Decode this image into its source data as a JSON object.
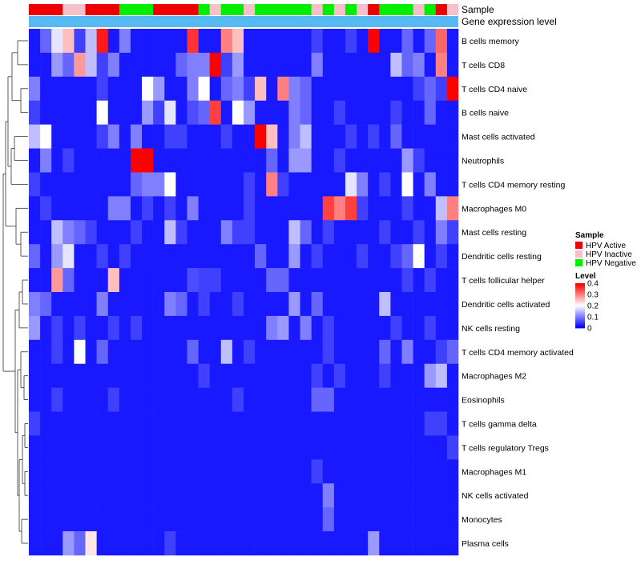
{
  "chart_data": {
    "type": "heatmap",
    "title": "",
    "annotation_tracks": [
      {
        "label": "Sample"
      },
      {
        "label": "Gene expression level"
      }
    ],
    "rows": [
      "B cells memory",
      "T cells CD8",
      "T cells CD4 naive",
      "B cells naive",
      "Mast cells activated",
      "Neutrophils",
      "T cells CD4 memory resting",
      "Macrophages M0",
      "Mast cells resting",
      "Dendritic cells resting",
      "T cells follicular helper",
      "Dendritic cells activated",
      "NK cells resting",
      "T cells CD4 memory activated",
      "Macrophages M2",
      "Eosinophils",
      "T cells gamma delta",
      "T cells regulatory  Tregs",
      "Macrophages M1",
      "NK cells activated",
      "Monocytes",
      "Plasma cells"
    ],
    "sample_groups": [
      "A",
      "A",
      "A",
      "I",
      "I",
      "A",
      "A",
      "A",
      "N",
      "N",
      "N",
      "A",
      "A",
      "A",
      "A",
      "N",
      "I",
      "N",
      "N",
      "I",
      "N",
      "N",
      "N",
      "N",
      "N",
      "I",
      "N",
      "I",
      "N",
      "I",
      "A",
      "N",
      "N",
      "N",
      "I",
      "N",
      "A",
      "I"
    ],
    "values": [
      [
        0.02,
        0.08,
        0.18,
        0.25,
        0.05,
        0.15,
        0.38,
        0.02,
        0.1,
        0.02,
        0.02,
        0.02,
        0.02,
        0.02,
        0.36,
        0.02,
        0.02,
        0.3,
        0.25,
        0.02,
        0.02,
        0.02,
        0.02,
        0.02,
        0.02,
        0.05,
        0.02,
        0.02,
        0.05,
        0.02,
        0.4,
        0.02,
        0.02,
        0.08,
        0.02,
        0.08,
        0.32,
        0.02
      ],
      [
        0.02,
        0.02,
        0.12,
        0.08,
        0.28,
        0.15,
        0.05,
        0.1,
        0.02,
        0.02,
        0.02,
        0.02,
        0.02,
        0.08,
        0.1,
        0.1,
        0.4,
        0.05,
        0.12,
        0.02,
        0.02,
        0.02,
        0.02,
        0.02,
        0.02,
        0.1,
        0.02,
        0.02,
        0.02,
        0.02,
        0.02,
        0.02,
        0.15,
        0.08,
        0.1,
        0.02,
        0.3,
        0.02
      ],
      [
        0.1,
        0.02,
        0.02,
        0.02,
        0.02,
        0.02,
        0.05,
        0.02,
        0.02,
        0.02,
        0.2,
        0.12,
        0.02,
        0.02,
        0.1,
        0.2,
        0.02,
        0.08,
        0.1,
        0.05,
        0.25,
        0.02,
        0.3,
        0.1,
        0.08,
        0.02,
        0.02,
        0.02,
        0.02,
        0.02,
        0.02,
        0.02,
        0.02,
        0.02,
        0.05,
        0.08,
        0.05,
        0.4
      ],
      [
        0.05,
        0.02,
        0.02,
        0.02,
        0.02,
        0.02,
        0.2,
        0.02,
        0.02,
        0.02,
        0.12,
        0.05,
        0.18,
        0.02,
        0.06,
        0.08,
        0.35,
        0.02,
        0.2,
        0.12,
        0.02,
        0.02,
        0.02,
        0.1,
        0.08,
        0.02,
        0.02,
        0.05,
        0.02,
        0.02,
        0.02,
        0.02,
        0.05,
        0.02,
        0.02,
        0.08,
        0.02,
        0.02
      ],
      [
        0.15,
        0.2,
        0.02,
        0.02,
        0.02,
        0.02,
        0.05,
        0.1,
        0.02,
        0.1,
        0.02,
        0.02,
        0.05,
        0.05,
        0.02,
        0.02,
        0.02,
        0.05,
        0.02,
        0.02,
        0.4,
        0.25,
        0.02,
        0.1,
        0.15,
        0.02,
        0.02,
        0.02,
        0.05,
        0.02,
        0.05,
        0.02,
        0.08,
        0.02,
        0.02,
        0.02,
        0.02,
        0.02
      ],
      [
        0.02,
        0.1,
        0.02,
        0.05,
        0.02,
        0.02,
        0.02,
        0.02,
        0.02,
        0.4,
        0.4,
        0.02,
        0.02,
        0.02,
        0.02,
        0.02,
        0.02,
        0.02,
        0.02,
        0.02,
        0.02,
        0.08,
        0.02,
        0.12,
        0.12,
        0.02,
        0.02,
        0.05,
        0.02,
        0.02,
        0.02,
        0.02,
        0.02,
        0.12,
        0.05,
        0.02,
        0.02,
        0.02
      ],
      [
        0.05,
        0.02,
        0.02,
        0.02,
        0.02,
        0.02,
        0.02,
        0.02,
        0.02,
        0.08,
        0.1,
        0.1,
        0.2,
        0.02,
        0.02,
        0.02,
        0.02,
        0.02,
        0.02,
        0.05,
        0.02,
        0.3,
        0.05,
        0.02,
        0.02,
        0.02,
        0.02,
        0.02,
        0.18,
        0.1,
        0.02,
        0.05,
        0.02,
        0.2,
        0.02,
        0.1,
        0.02,
        0.02
      ],
      [
        0.02,
        0.05,
        0.02,
        0.02,
        0.02,
        0.02,
        0.02,
        0.1,
        0.1,
        0.02,
        0.05,
        0.02,
        0.05,
        0.02,
        0.1,
        0.02,
        0.02,
        0.02,
        0.02,
        0.05,
        0.02,
        0.02,
        0.02,
        0.02,
        0.02,
        0.02,
        0.35,
        0.3,
        0.35,
        0.05,
        0.02,
        0.02,
        0.02,
        0.05,
        0.02,
        0.02,
        0.15,
        0.3
      ],
      [
        0.02,
        0.02,
        0.15,
        0.1,
        0.08,
        0.05,
        0.02,
        0.02,
        0.02,
        0.05,
        0.02,
        0.02,
        0.15,
        0.05,
        0.02,
        0.02,
        0.02,
        0.1,
        0.05,
        0.05,
        0.02,
        0.02,
        0.02,
        0.15,
        0.08,
        0.02,
        0.05,
        0.02,
        0.02,
        0.02,
        0.02,
        0.05,
        0.02,
        0.02,
        0.05,
        0.02,
        0.1,
        0.05
      ],
      [
        0.08,
        0.02,
        0.12,
        0.18,
        0.02,
        0.02,
        0.05,
        0.02,
        0.05,
        0.02,
        0.02,
        0.02,
        0.02,
        0.02,
        0.02,
        0.02,
        0.02,
        0.02,
        0.02,
        0.02,
        0.08,
        0.02,
        0.02,
        0.12,
        0.02,
        0.05,
        0.02,
        0.02,
        0.02,
        0.05,
        0.02,
        0.02,
        0.05,
        0.08,
        0.2,
        0.02,
        0.05,
        0.02
      ],
      [
        0.02,
        0.02,
        0.28,
        0.08,
        0.02,
        0.02,
        0.02,
        0.25,
        0.02,
        0.02,
        0.02,
        0.02,
        0.02,
        0.02,
        0.06,
        0.05,
        0.05,
        0.02,
        0.02,
        0.02,
        0.02,
        0.08,
        0.08,
        0.02,
        0.02,
        0.02,
        0.02,
        0.02,
        0.02,
        0.02,
        0.02,
        0.02,
        0.02,
        0.05,
        0.02,
        0.05,
        0.02,
        0.02
      ],
      [
        0.1,
        0.08,
        0.02,
        0.02,
        0.02,
        0.02,
        0.1,
        0.02,
        0.02,
        0.02,
        0.02,
        0.02,
        0.1,
        0.08,
        0.02,
        0.05,
        0.02,
        0.02,
        0.05,
        0.02,
        0.02,
        0.02,
        0.02,
        0.12,
        0.02,
        0.08,
        0.02,
        0.02,
        0.02,
        0.02,
        0.02,
        0.15,
        0.02,
        0.02,
        0.02,
        0.02,
        0.02,
        0.02
      ],
      [
        0.12,
        0.02,
        0.05,
        0.02,
        0.05,
        0.02,
        0.02,
        0.05,
        0.02,
        0.05,
        0.02,
        0.02,
        0.02,
        0.02,
        0.02,
        0.02,
        0.02,
        0.02,
        0.02,
        0.02,
        0.02,
        0.1,
        0.12,
        0.02,
        0.1,
        0.02,
        0.05,
        0.02,
        0.02,
        0.02,
        0.02,
        0.02,
        0.05,
        0.02,
        0.02,
        0.05,
        0.02,
        0.02
      ],
      [
        0.02,
        0.02,
        0.05,
        0.02,
        0.2,
        0.02,
        0.08,
        0.02,
        0.02,
        0.02,
        0.02,
        0.02,
        0.02,
        0.02,
        0.08,
        0.02,
        0.02,
        0.15,
        0.02,
        0.05,
        0.02,
        0.02,
        0.02,
        0.02,
        0.02,
        0.02,
        0.05,
        0.02,
        0.02,
        0.02,
        0.02,
        0.08,
        0.02,
        0.1,
        0.02,
        0.02,
        0.05,
        0.08
      ],
      [
        0.02,
        0.02,
        0.02,
        0.02,
        0.02,
        0.02,
        0.02,
        0.02,
        0.02,
        0.02,
        0.02,
        0.02,
        0.02,
        0.02,
        0.02,
        0.05,
        0.02,
        0.02,
        0.02,
        0.02,
        0.02,
        0.02,
        0.02,
        0.02,
        0.02,
        0.05,
        0.02,
        0.05,
        0.02,
        0.02,
        0.02,
        0.05,
        0.02,
        0.02,
        0.02,
        0.12,
        0.15,
        0.02
      ],
      [
        0.02,
        0.02,
        0.05,
        0.02,
        0.02,
        0.02,
        0.02,
        0.05,
        0.02,
        0.02,
        0.02,
        0.02,
        0.02,
        0.02,
        0.02,
        0.02,
        0.02,
        0.02,
        0.05,
        0.02,
        0.02,
        0.02,
        0.02,
        0.02,
        0.02,
        0.08,
        0.08,
        0.02,
        0.02,
        0.02,
        0.02,
        0.02,
        0.02,
        0.02,
        0.02,
        0.02,
        0.02,
        0.02
      ],
      [
        0.05,
        0.02,
        0.02,
        0.02,
        0.02,
        0.02,
        0.02,
        0.02,
        0.02,
        0.02,
        0.02,
        0.02,
        0.02,
        0.02,
        0.02,
        0.02,
        0.02,
        0.02,
        0.02,
        0.02,
        0.02,
        0.02,
        0.02,
        0.02,
        0.02,
        0.02,
        0.02,
        0.02,
        0.02,
        0.02,
        0.02,
        0.02,
        0.02,
        0.02,
        0.02,
        0.05,
        0.05,
        0.02
      ],
      [
        0.02,
        0.02,
        0.02,
        0.02,
        0.02,
        0.02,
        0.02,
        0.02,
        0.02,
        0.02,
        0.02,
        0.02,
        0.02,
        0.02,
        0.02,
        0.02,
        0.02,
        0.02,
        0.02,
        0.02,
        0.02,
        0.02,
        0.02,
        0.02,
        0.02,
        0.02,
        0.02,
        0.02,
        0.02,
        0.02,
        0.02,
        0.02,
        0.02,
        0.02,
        0.02,
        0.02,
        0.02,
        0.05
      ],
      [
        0.02,
        0.02,
        0.02,
        0.02,
        0.02,
        0.02,
        0.02,
        0.02,
        0.02,
        0.02,
        0.02,
        0.02,
        0.02,
        0.02,
        0.02,
        0.02,
        0.02,
        0.02,
        0.02,
        0.02,
        0.02,
        0.02,
        0.02,
        0.02,
        0.02,
        0.05,
        0.02,
        0.02,
        0.02,
        0.02,
        0.02,
        0.02,
        0.02,
        0.02,
        0.02,
        0.02,
        0.02,
        0.02
      ],
      [
        0.02,
        0.02,
        0.02,
        0.02,
        0.02,
        0.02,
        0.02,
        0.02,
        0.02,
        0.02,
        0.02,
        0.02,
        0.02,
        0.02,
        0.02,
        0.02,
        0.02,
        0.02,
        0.02,
        0.02,
        0.02,
        0.02,
        0.02,
        0.02,
        0.02,
        0.02,
        0.1,
        0.02,
        0.02,
        0.02,
        0.02,
        0.02,
        0.02,
        0.02,
        0.02,
        0.02,
        0.02,
        0.02
      ],
      [
        0.02,
        0.02,
        0.02,
        0.02,
        0.02,
        0.02,
        0.02,
        0.02,
        0.02,
        0.02,
        0.02,
        0.02,
        0.02,
        0.02,
        0.02,
        0.02,
        0.02,
        0.02,
        0.02,
        0.02,
        0.02,
        0.02,
        0.02,
        0.02,
        0.02,
        0.02,
        0.08,
        0.02,
        0.02,
        0.02,
        0.02,
        0.02,
        0.02,
        0.02,
        0.02,
        0.02,
        0.02,
        0.02
      ],
      [
        0.02,
        0.02,
        0.02,
        0.12,
        0.08,
        0.22,
        0.02,
        0.02,
        0.02,
        0.02,
        0.02,
        0.02,
        0.05,
        0.02,
        0.02,
        0.02,
        0.02,
        0.02,
        0.02,
        0.02,
        0.02,
        0.02,
        0.02,
        0.02,
        0.02,
        0.02,
        0.02,
        0.02,
        0.02,
        0.02,
        0.12,
        0.02,
        0.02,
        0.02,
        0.02,
        0.02,
        0.02,
        0.02
      ]
    ],
    "legend_sample": {
      "title": "Sample",
      "entries": [
        {
          "key": "A",
          "label": "HPV Active",
          "color": "#ee0000"
        },
        {
          "key": "I",
          "label": "HPV Inactive",
          "color": "#f6c0cb"
        },
        {
          "key": "N",
          "label": "HPV Negative",
          "color": "#00ee00"
        }
      ]
    },
    "legend_level": {
      "title": "Level",
      "ticks": [
        "0.4",
        "0.3",
        "0.2",
        "0.1",
        "0"
      ],
      "range": [
        0,
        0.4
      ]
    },
    "expression_color": "#57b9f2"
  }
}
